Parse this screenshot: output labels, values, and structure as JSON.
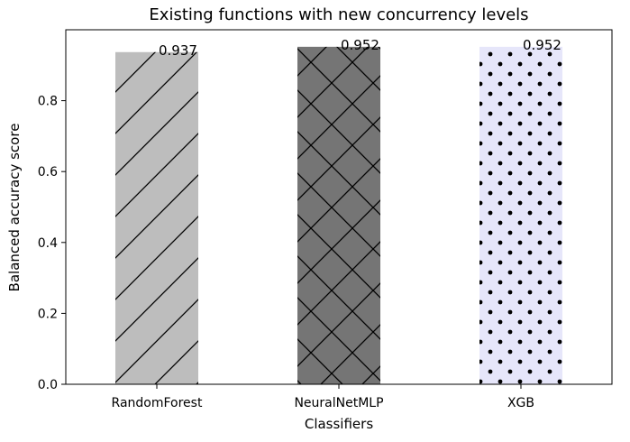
{
  "chart_data": {
    "type": "bar",
    "title": "Existing functions with new concurrency levels",
    "xlabel": "Classifiers",
    "ylabel": "Balanced accuracy score",
    "categories": [
      "RandomForest",
      "NeuralNetMLP",
      "XGB"
    ],
    "values": [
      0.937,
      0.952,
      0.952
    ],
    "value_labels": [
      "0.937",
      "0.952",
      "0.952"
    ],
    "ylim": [
      0,
      1.0
    ],
    "yticks": [
      0.0,
      0.2,
      0.4,
      0.6,
      0.8
    ],
    "ytick_labels": [
      "0.0",
      "0.2",
      "0.4",
      "0.6",
      "0.8"
    ],
    "bar_styles": [
      {
        "fill": "#bdbdbd",
        "pattern": "diagonal"
      },
      {
        "fill": "#757575",
        "pattern": "crosshatch"
      },
      {
        "fill": "#e6e6fa",
        "pattern": "dots"
      }
    ],
    "grid": false
  }
}
